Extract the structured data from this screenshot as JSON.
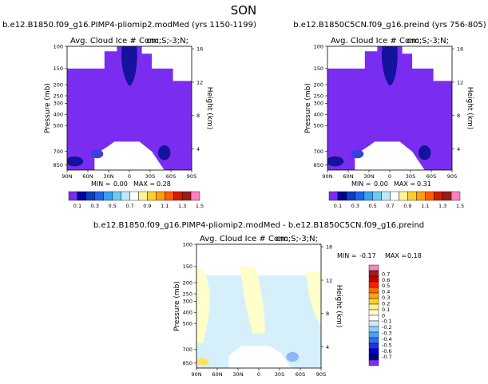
{
  "figure_title": "SON",
  "colors": {
    "ice_ramp": [
      "#7a2df0",
      "#00009a",
      "#0b3ec7",
      "#1f63e6",
      "#36a0f2",
      "#6cc9f7",
      "#bfe8fb",
      "#ffffff",
      "#fff39b",
      "#ffcf2e",
      "#ff9f10",
      "#ff5e00",
      "#d41b00",
      "#9c1b1b",
      "#ff7fbf"
    ],
    "diff_ramp": [
      "#7a2df0",
      "#000090",
      "#0000d0",
      "#2030f0",
      "#2f6ef2",
      "#4ea0f5",
      "#8ccff8",
      "#cdebfb",
      "#ffffff",
      "#ffffc8",
      "#fff08a",
      "#ffd030",
      "#ffa500",
      "#ff6a00",
      "#ff2000",
      "#c80000",
      "#a01e1e",
      "#ff80c0"
    ],
    "fill_base": "#7a2df0",
    "fill_dark": "#15139e",
    "fill_med": "#3a3fe0",
    "diff_pos": "#ffffcc",
    "diff_neg": "#d6f0fb",
    "diff_warm": "#ffe060",
    "diff_cool": "#8fb6f5"
  },
  "chart_data": [
    {
      "type": "heatmap",
      "title": "b.e12.B1850.f09_g16.PIMP4-pliomip2.modMed (yrs 1150-1199)",
      "subtitle_left": "Avg. Cloud Ice # Conc.",
      "subtitle_right": "cm;S;-3;N;",
      "ylabel": "Pressure (mb)",
      "ylabel_right": "Height (km)",
      "x_ticks": [
        "90N",
        "60N",
        "30N",
        "0",
        "30S",
        "60S",
        "90S"
      ],
      "y_ticks": [
        "100",
        "150",
        "200",
        "250",
        "300",
        "400",
        "500",
        "700",
        "850"
      ],
      "height_ticks": [
        "16",
        "12",
        "8",
        "4"
      ],
      "stats": {
        "min_label": "MIN =",
        "min": "0.00",
        "max_label": "MAX =",
        "max": "0.28"
      },
      "colorbar_labels": [
        "0.1",
        "0.3",
        "0.5",
        "0.7",
        "0.9",
        "1.1",
        "1.3",
        "1.5"
      ]
    },
    {
      "type": "heatmap",
      "title": "b.e12.B1850C5CN.f09_g16.preind (yrs 756-805)",
      "subtitle_left": "Avg. Cloud Ice # Conc.",
      "subtitle_right": "cm;S;-3;N;",
      "ylabel": "Pressure (mb)",
      "ylabel_right": "Height (km)",
      "x_ticks": [
        "90N",
        "60N",
        "30N",
        "0",
        "30S",
        "60S",
        "90S"
      ],
      "y_ticks": [
        "100",
        "150",
        "200",
        "250",
        "300",
        "400",
        "500",
        "700",
        "850"
      ],
      "height_ticks": [
        "16",
        "12",
        "8",
        "4"
      ],
      "stats": {
        "min_label": "MIN =",
        "min": "0.00",
        "max_label": "MAX =",
        "max": "0.31"
      },
      "colorbar_labels": [
        "0.1",
        "0.3",
        "0.5",
        "0.7",
        "0.9",
        "1.1",
        "1.3",
        "1.5"
      ]
    },
    {
      "type": "heatmap",
      "title": "b.e12.B1850.f09_g16.PIMP4-pliomip2.modMed - b.e12.B1850C5CN.f09_g16.preind",
      "subtitle_left": "Avg. Cloud Ice # Conc.",
      "subtitle_right": "cm;S;-3;N;",
      "ylabel": "Pressure (mb)",
      "ylabel_right": "Height (km)",
      "x_ticks": [
        "90N",
        "60N",
        "30N",
        "0",
        "30S",
        "60S",
        "90S"
      ],
      "y_ticks": [
        "100",
        "150",
        "200",
        "250",
        "300",
        "400",
        "500",
        "700",
        "850"
      ],
      "height_ticks": [
        "16",
        "12",
        "8",
        "4"
      ],
      "stats": {
        "min_label": "MIN =",
        "min": "-0.17",
        "max_label": "MAX =",
        "max": "0.18"
      },
      "colorbar_labels": [
        "0.7",
        "0.6",
        "0.5",
        "0.4",
        "0.3",
        "0.2",
        "0.1",
        "0",
        "-0.1",
        "-0.2",
        "-0.3",
        "-0.4",
        "-0.5",
        "-0.6",
        "-0.7"
      ]
    }
  ]
}
